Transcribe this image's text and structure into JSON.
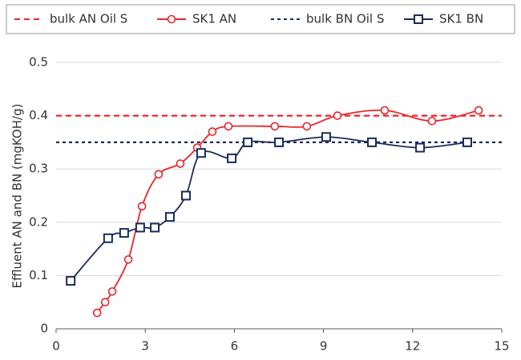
{
  "chart_data": {
    "type": "line",
    "y_label": "Effluent AN and BN (mgKOH/g)",
    "xlim": [
      0,
      15
    ],
    "xticks": [
      0,
      3,
      6,
      9,
      12,
      15
    ],
    "ylim": [
      0,
      0.5
    ],
    "yticks": [
      0,
      0.1,
      0.2,
      0.3,
      0.4,
      0.5
    ],
    "grid": "y",
    "legend": "top",
    "series": [
      {
        "name": "bulk AN Oil S",
        "color": "#e8262a",
        "style": "dashed",
        "x": [
          0,
          15
        ],
        "values": [
          0.4,
          0.4
        ]
      },
      {
        "name": "SK1 AN",
        "color": "#e8262a",
        "style": "smooth",
        "marker": "circle",
        "x": [
          1.38,
          1.65,
          1.89,
          2.43,
          2.89,
          3.45,
          4.18,
          4.75,
          5.26,
          5.8,
          7.36,
          8.44,
          9.47,
          11.06,
          12.65,
          14.22
        ],
        "values": [
          0.03,
          0.05,
          0.07,
          0.13,
          0.23,
          0.29,
          0.31,
          0.34,
          0.37,
          0.38,
          0.38,
          0.38,
          0.4,
          0.41,
          0.39,
          0.41
        ]
      },
      {
        "name": "bulk BN Oil S",
        "color": "#1b2a5c",
        "style": "dashed",
        "x": [
          0,
          15
        ],
        "values": [
          0.35,
          0.35
        ]
      },
      {
        "name": "SK1 BN",
        "color": "#1b2a5c",
        "style": "smooth",
        "marker": "square",
        "x": [
          0.49,
          1.75,
          2.29,
          2.83,
          3.32,
          3.83,
          4.37,
          4.88,
          5.91,
          6.45,
          7.5,
          9.09,
          10.63,
          12.25,
          13.84
        ],
        "values": [
          0.09,
          0.17,
          0.18,
          0.19,
          0.19,
          0.21,
          0.25,
          0.33,
          0.32,
          0.35,
          0.35,
          0.36,
          0.35,
          0.34,
          0.35
        ]
      }
    ]
  }
}
